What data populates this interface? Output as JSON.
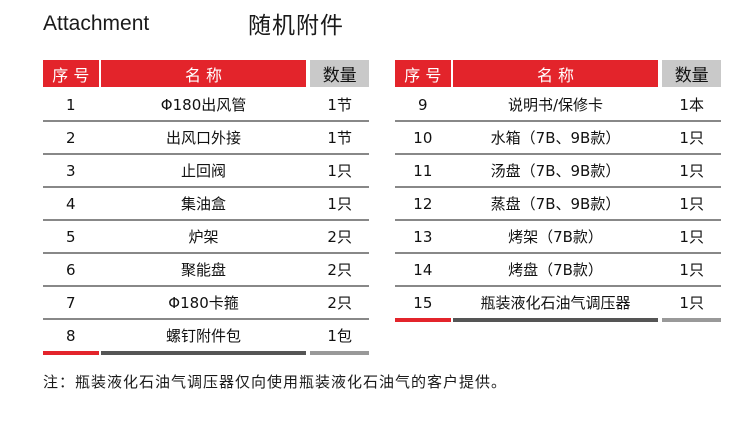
{
  "title_en": "Attachment",
  "title_zh": "随机附件",
  "headers": {
    "no": "序 号",
    "name": "名    称",
    "qty": "数量"
  },
  "left_rows": [
    {
      "no": "1",
      "name": "Φ180出风管",
      "qty": "1节"
    },
    {
      "no": "2",
      "name": "出风口外接",
      "qty": "1节"
    },
    {
      "no": "3",
      "name": "止回阀",
      "qty": "1只"
    },
    {
      "no": "4",
      "name": "集油盒",
      "qty": "1只"
    },
    {
      "no": "5",
      "name": "炉架",
      "qty": "2只"
    },
    {
      "no": "6",
      "name": "聚能盘",
      "qty": "2只"
    },
    {
      "no": "7",
      "name": "Φ180卡箍",
      "qty": "2只"
    },
    {
      "no": "8",
      "name": "螺钉附件包",
      "qty": "1包"
    }
  ],
  "right_rows": [
    {
      "no": "9",
      "name": "说明书/保修卡",
      "qty": "1本"
    },
    {
      "no": "10",
      "name": "水箱（7B、9B款）",
      "qty": "1只"
    },
    {
      "no": "11",
      "name": "汤盘（7B、9B款）",
      "qty": "1只"
    },
    {
      "no": "12",
      "name": "蒸盘（7B、9B款）",
      "qty": "1只"
    },
    {
      "no": "13",
      "name": "烤架（7B款）",
      "qty": "1只"
    },
    {
      "no": "14",
      "name": "烤盘（7B款）",
      "qty": "1只"
    },
    {
      "no": "15",
      "name": "瓶装液化石油气调压器",
      "qty": "1只"
    }
  ],
  "note": "注：瓶装液化石油气调压器仅向使用瓶装液化石油气的客户提供。",
  "colors": {
    "accent": "#e3242b",
    "qty_header": "#c9c9c9"
  }
}
